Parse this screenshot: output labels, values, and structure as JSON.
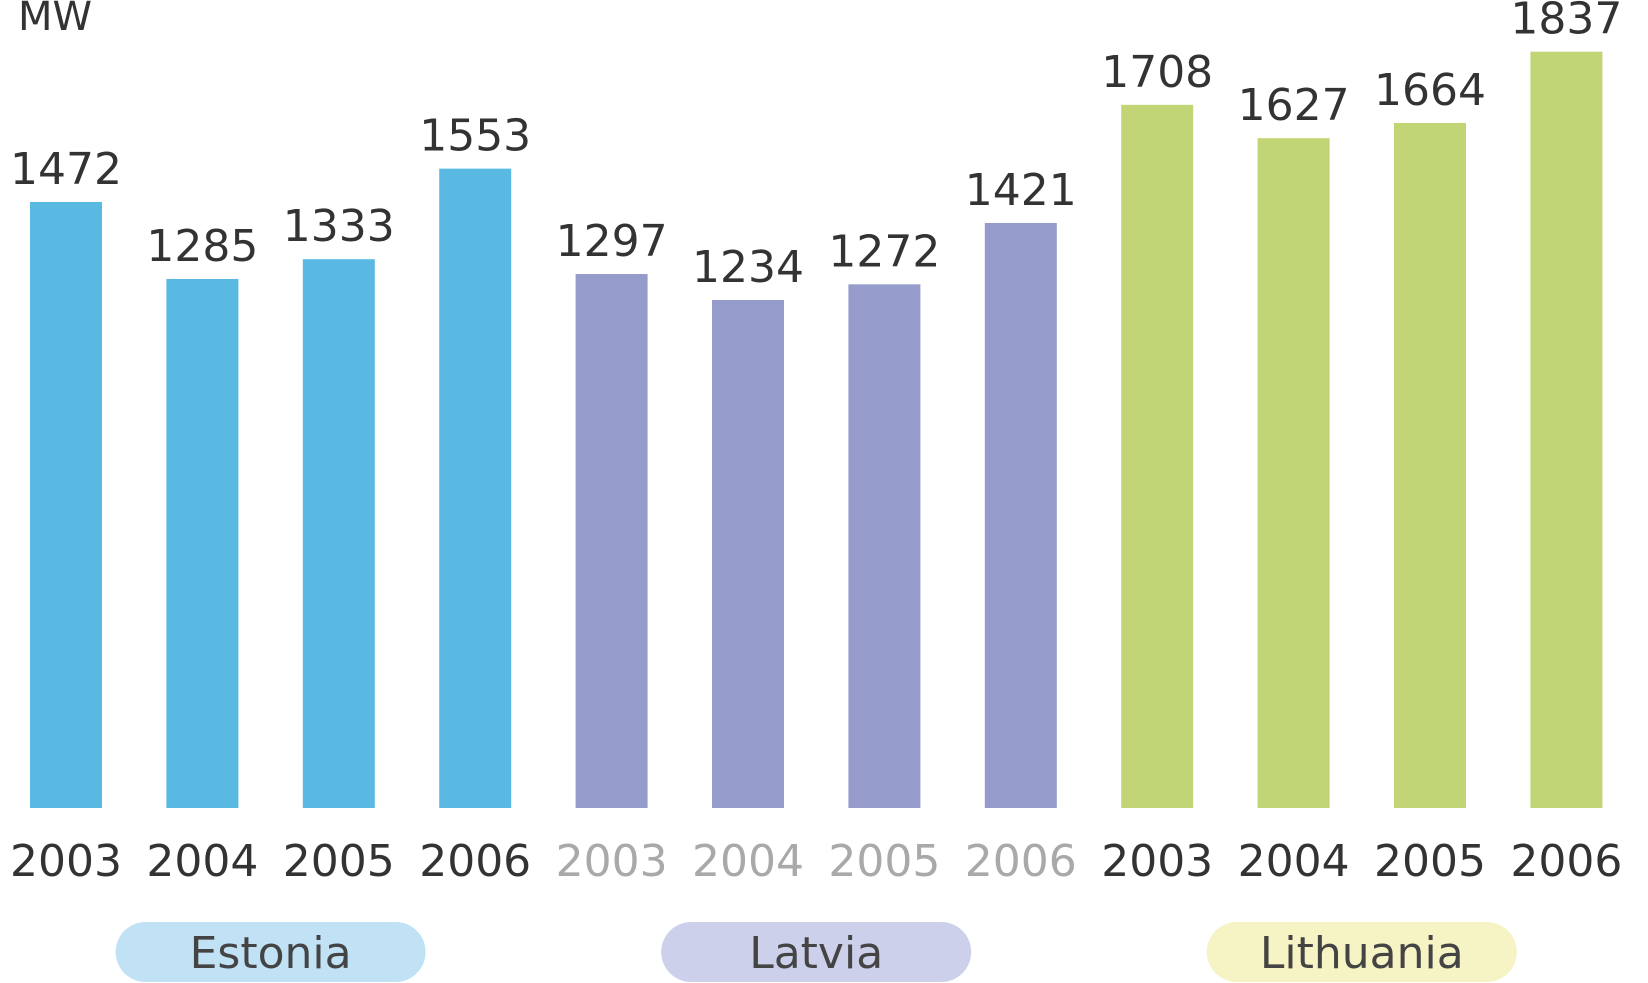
{
  "chart_data": {
    "type": "bar",
    "ylabel": "MW",
    "ylim": [
      0,
      1900
    ],
    "grid": false,
    "legend": "none",
    "groups": [
      {
        "name": "Estonia",
        "bar_color": "#5ab9e3",
        "label_bg": "#c0e2f4",
        "tick_faded": false,
        "categories": [
          "2003",
          "2004",
          "2005",
          "2006"
        ],
        "values": [
          1472,
          1285,
          1333,
          1553
        ]
      },
      {
        "name": "Latvia",
        "bar_color": "#959ccb",
        "label_bg": "#ccd0ea",
        "tick_faded": true,
        "categories": [
          "2003",
          "2004",
          "2005",
          "2006"
        ],
        "values": [
          1297,
          1234,
          1272,
          1421
        ]
      },
      {
        "name": "Lithuania",
        "bar_color": "#c2d576",
        "label_bg": "#f6f3c4",
        "tick_faded": false,
        "categories": [
          "2003",
          "2004",
          "2005",
          "2006"
        ],
        "values": [
          1708,
          1627,
          1664,
          1837
        ]
      }
    ]
  }
}
